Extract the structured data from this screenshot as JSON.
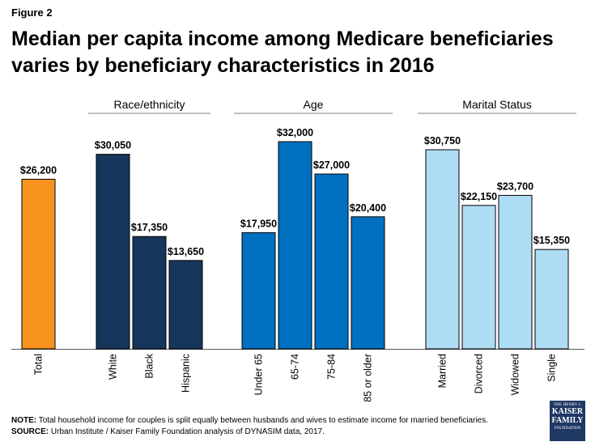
{
  "figure_label": "Figure 2",
  "title": "Median per capita income among Medicare beneficiaries varies by beneficiary characteristics in 2016",
  "note": {
    "note_label": "NOTE:",
    "note_text": " Total household income for couples is split equally between husbands and wives  to estimate income for married beneficiaries.",
    "source_label": "SOURCE:",
    "source_text": " Urban Institute / Kaiser Family Foundation analysis of DYNASIM data, 2017."
  },
  "logo": {
    "line1": "THE HENRY J.",
    "line2": "KAISER",
    "line3": "FAMILY",
    "line4": "FOUNDATION"
  },
  "chart_data": {
    "type": "bar",
    "ylim": [
      0,
      36000
    ],
    "groups": [
      {
        "name": "",
        "color": "#f7931e",
        "categories": [
          "Total"
        ],
        "values": [
          26200
        ],
        "labels": [
          "$26,200"
        ]
      },
      {
        "name": "Race/ethnicity",
        "color": "#16365c",
        "categories": [
          "White",
          "Black",
          "Hispanic"
        ],
        "values": [
          30050,
          17350,
          13650
        ],
        "labels": [
          "$30,050",
          "$17,350",
          "$13,650"
        ]
      },
      {
        "name": "Age",
        "color": "#0070c0",
        "categories": [
          "Under 65",
          "65-74",
          "75-84",
          "85 or older"
        ],
        "values": [
          17950,
          32000,
          27000,
          20400
        ],
        "labels": [
          "$17,950",
          "$32,000",
          "$27,000",
          "$20,400"
        ]
      },
      {
        "name": "Marital Status",
        "color": "#aedcf5",
        "categories": [
          "Married",
          "Divorced",
          "Widowed",
          "Single"
        ],
        "values": [
          30750,
          22150,
          23700,
          15350
        ],
        "labels": [
          "$30,750",
          "$22,150",
          "$23,700",
          "$15,350"
        ]
      }
    ]
  }
}
